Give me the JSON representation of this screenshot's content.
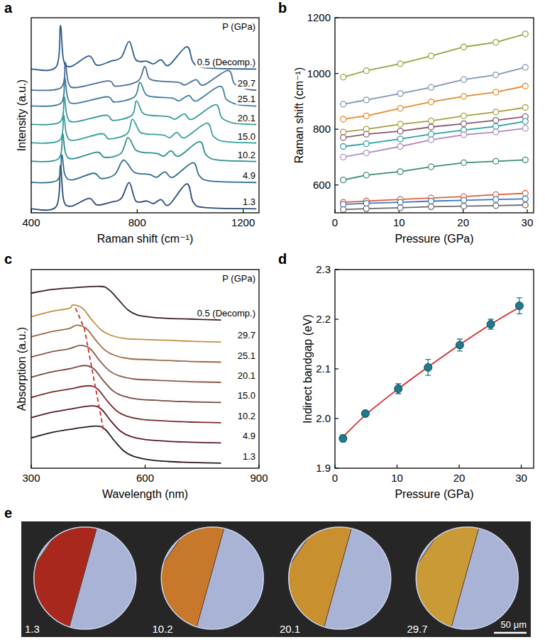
{
  "chart_data": [
    {
      "panel": "a",
      "type": "line",
      "xlabel": "Raman shift (cm⁻¹)",
      "ylabel": "Intensity (a.u.)",
      "legend_title": "P (GPa)",
      "xlim": [
        400,
        1260
      ],
      "xticks": [
        400,
        800,
        1200
      ],
      "ylim": [
        -0.1,
        7.3
      ],
      "tick_labels": "x",
      "series": [
        {
          "name": "1.3",
          "color": "#2b4a7a",
          "x": [
            400,
            495,
            510,
            522,
            550,
            618,
            648,
            700,
            740,
            770,
            795,
            836,
            861,
            890,
            920,
            987,
            1012,
            1057,
            1250
          ],
          "values": [
            0.05,
            0.15,
            1.7,
            0.4,
            0.15,
            0.45,
            0.2,
            0.3,
            0.45,
            1.05,
            0.35,
            0.35,
            0.25,
            0.4,
            0.2,
            1.0,
            0.3,
            0.1,
            0.05
          ]
        },
        {
          "name": "4.9",
          "color": "#2e6e8e",
          "x": [
            400,
            500,
            515,
            527,
            555,
            635,
            665,
            715,
            748,
            782,
            800,
            848,
            873,
            905,
            935,
            1010,
            1035,
            1080,
            1250
          ],
          "values": [
            1.05,
            1.15,
            2.1,
            1.35,
            1.15,
            1.4,
            1.2,
            1.35,
            1.9,
            1.5,
            1.4,
            1.35,
            1.25,
            1.45,
            1.25,
            1.8,
            1.3,
            1.1,
            1.05
          ]
        },
        {
          "name": "10.2",
          "color": "#2f8f8f",
          "x": [
            400,
            503,
            518,
            530,
            558,
            648,
            678,
            738,
            765,
            793,
            818,
            875,
            900,
            928,
            958,
            1035,
            1060,
            1105,
            1250
          ],
          "values": [
            1.85,
            1.95,
            2.9,
            2.15,
            1.95,
            2.2,
            2.0,
            2.15,
            2.75,
            2.3,
            2.2,
            2.15,
            2.05,
            2.25,
            2.05,
            2.6,
            2.1,
            1.9,
            1.85
          ]
        },
        {
          "name": "15.0",
          "color": "#35a39a",
          "x": [
            400,
            507,
            522,
            534,
            562,
            665,
            695,
            762,
            782,
            808,
            830,
            898,
            923,
            950,
            980,
            1063,
            1088,
            1133,
            1250
          ],
          "values": [
            2.55,
            2.65,
            3.6,
            2.85,
            2.65,
            2.9,
            2.7,
            2.9,
            3.45,
            3.0,
            2.9,
            2.85,
            2.75,
            2.95,
            2.75,
            3.3,
            2.8,
            2.6,
            2.55
          ]
        },
        {
          "name": "20.1",
          "color": "#3a9a9a",
          "x": [
            400,
            509,
            524,
            536,
            564,
            680,
            710,
            780,
            797,
            820,
            848,
            918,
            943,
            978,
            1008,
            1095,
            1120,
            1165,
            1250
          ],
          "values": [
            3.25,
            3.35,
            4.3,
            3.55,
            3.35,
            3.6,
            3.4,
            3.6,
            4.15,
            3.7,
            3.6,
            3.55,
            3.45,
            3.65,
            3.45,
            4.0,
            3.5,
            3.3,
            3.25
          ]
        },
        {
          "name": "25.1",
          "color": "#3f7e9c",
          "x": [
            400,
            511,
            526,
            538,
            566,
            685,
            715,
            790,
            810,
            832,
            862,
            933,
            958,
            995,
            1025,
            1112,
            1137,
            1182,
            1250
          ],
          "values": [
            3.95,
            4.05,
            5.0,
            4.25,
            4.05,
            4.3,
            4.1,
            4.3,
            4.85,
            4.4,
            4.3,
            4.25,
            4.15,
            4.35,
            4.15,
            4.7,
            4.2,
            4.0,
            3.95
          ]
        },
        {
          "name": "29.7",
          "color": "#4a6f95",
          "x": [
            400,
            513,
            528,
            540,
            568,
            690,
            720,
            803,
            828,
            845,
            878,
            955,
            980,
            1022,
            1052,
            1142,
            1167,
            1212,
            1250
          ],
          "values": [
            4.55,
            4.65,
            5.6,
            4.85,
            4.65,
            4.9,
            4.7,
            4.9,
            5.45,
            5.0,
            4.9,
            4.85,
            4.75,
            4.95,
            4.75,
            5.3,
            4.8,
            4.6,
            4.55
          ]
        },
        {
          "name": "0.5 (Decomp.)",
          "color": "#2d5a8a",
          "x": [
            400,
            495,
            510,
            522,
            550,
            618,
            648,
            700,
            740,
            770,
            795,
            836,
            861,
            890,
            920,
            987,
            1012,
            1057,
            1250
          ],
          "values": [
            5.35,
            5.45,
            7.0,
            5.7,
            5.45,
            5.85,
            5.5,
            5.65,
            5.8,
            6.4,
            5.7,
            5.65,
            5.55,
            5.7,
            5.5,
            6.2,
            5.6,
            5.4,
            5.35
          ]
        }
      ]
    },
    {
      "panel": "b",
      "type": "line",
      "xlabel": "Pressure (GPa)",
      "ylabel": "Raman shift (cm⁻¹)",
      "marker": "open_circle",
      "x": [
        1.3,
        4.9,
        10.2,
        15.0,
        20.1,
        25.1,
        29.7
      ],
      "xlim": [
        0,
        31
      ],
      "xticks": [
        0,
        10,
        20,
        30
      ],
      "ylim": [
        500,
        1200
      ],
      "yticks": [
        600,
        800,
        1000,
        1200
      ],
      "series": [
        {
          "color": "#8fa83c",
          "values": [
            987,
            1010,
            1035,
            1063,
            1095,
            1112,
            1142
          ]
        },
        {
          "color": "#7f95b5",
          "values": [
            890,
            905,
            928,
            950,
            978,
            995,
            1022
          ]
        },
        {
          "color": "#e8892c",
          "values": [
            836,
            848,
            875,
            898,
            918,
            933,
            955
          ]
        },
        {
          "color": "#a5a040",
          "values": [
            790,
            800,
            818,
            830,
            848,
            862,
            878
          ]
        },
        {
          "color": "#8a5a6a",
          "values": [
            770,
            782,
            793,
            808,
            820,
            832,
            845
          ]
        },
        {
          "color": "#2aa0a8",
          "values": [
            738,
            748,
            765,
            782,
            797,
            810,
            828
          ]
        },
        {
          "color": "#b08cc0",
          "values": [
            700,
            715,
            738,
            762,
            780,
            790,
            803
          ]
        },
        {
          "color": "#3a8f6a",
          "values": [
            618,
            635,
            648,
            665,
            680,
            685,
            690
          ]
        },
        {
          "color": "#e0603a",
          "values": [
            538,
            542,
            548,
            553,
            558,
            565,
            570
          ]
        },
        {
          "color": "#3a78c0",
          "values": [
            530,
            534,
            538,
            542,
            545,
            548,
            550
          ]
        },
        {
          "color": "#6a6a6a",
          "values": [
            512,
            515,
            518,
            522,
            524,
            526,
            528
          ]
        }
      ]
    },
    {
      "panel": "c",
      "type": "line",
      "xlabel": "Wavelength (nm)",
      "ylabel": "Absorption (a.u.)",
      "legend_title": "P (GPa)",
      "xlim": [
        300,
        900
      ],
      "xticks": [
        300,
        600,
        900
      ],
      "ylim": [
        -0.1,
        5.8
      ],
      "tick_labels": "x",
      "series": [
        {
          "name": "1.3",
          "color": "#2a1a1a",
          "x": [
            300,
            350,
            400,
            470,
            495,
            520,
            545,
            570,
            610,
            660,
            720,
            800
          ],
          "values": [
            0.8,
            0.95,
            1.05,
            1.15,
            1.05,
            0.7,
            0.4,
            0.25,
            0.15,
            0.1,
            0.07,
            0.05
          ]
        },
        {
          "name": "4.9",
          "color": "#5a1a2a",
          "x": [
            300,
            350,
            400,
            460,
            485,
            510,
            535,
            560,
            600,
            660,
            720,
            800
          ],
          "values": [
            1.4,
            1.55,
            1.65,
            1.75,
            1.65,
            1.3,
            1.0,
            0.85,
            0.75,
            0.7,
            0.67,
            0.65
          ]
        },
        {
          "name": "10.2",
          "color": "#7a2a30",
          "x": [
            300,
            350,
            400,
            450,
            475,
            500,
            525,
            550,
            590,
            660,
            720,
            800
          ],
          "values": [
            2.0,
            2.15,
            2.25,
            2.35,
            2.25,
            1.9,
            1.6,
            1.45,
            1.35,
            1.3,
            1.27,
            1.25
          ]
        },
        {
          "name": "15.0",
          "color": "#7a4a45",
          "x": [
            300,
            350,
            400,
            440,
            465,
            490,
            515,
            540,
            580,
            660,
            720,
            800
          ],
          "values": [
            2.6,
            2.75,
            2.85,
            2.95,
            2.85,
            2.5,
            2.2,
            2.05,
            1.95,
            1.9,
            1.87,
            1.85
          ]
        },
        {
          "name": "20.1",
          "color": "#8a5a4a",
          "x": [
            300,
            350,
            400,
            430,
            455,
            480,
            505,
            530,
            570,
            660,
            720,
            800
          ],
          "values": [
            3.2,
            3.35,
            3.45,
            3.55,
            3.45,
            3.1,
            2.8,
            2.65,
            2.55,
            2.5,
            2.47,
            2.45
          ]
        },
        {
          "name": "25.1",
          "color": "#9a6a45",
          "x": [
            300,
            350,
            400,
            420,
            445,
            470,
            495,
            520,
            560,
            660,
            720,
            800
          ],
          "values": [
            3.8,
            3.95,
            4.05,
            4.15,
            4.05,
            3.7,
            3.4,
            3.25,
            3.15,
            3.1,
            3.07,
            3.05
          ]
        },
        {
          "name": "29.7",
          "color": "#c09040",
          "x": [
            300,
            350,
            400,
            410,
            435,
            460,
            485,
            510,
            550,
            660,
            720,
            800
          ],
          "values": [
            4.4,
            4.55,
            4.65,
            4.75,
            4.65,
            4.3,
            4.0,
            3.85,
            3.75,
            3.7,
            3.67,
            3.65
          ]
        },
        {
          "name": "0.5 (Decomp.)",
          "color": "#3a2020",
          "x": [
            300,
            350,
            400,
            480,
            505,
            530,
            555,
            580,
            620,
            660,
            720,
            800
          ],
          "values": [
            5.1,
            5.2,
            5.25,
            5.3,
            5.2,
            4.9,
            4.6,
            4.45,
            4.38,
            4.35,
            4.33,
            4.3
          ]
        },
        {
          "color": "#d62728",
          "line_style": "dashed",
          "x": [
            490,
            480,
            470,
            460,
            450,
            440,
            415
          ],
          "values": [
            1.05,
            1.65,
            2.25,
            2.85,
            3.45,
            4.05,
            4.7
          ]
        }
      ]
    },
    {
      "panel": "d",
      "type": "scatter",
      "xlabel": "Pressure (GPa)",
      "ylabel": "Indirect bandgap (eV)",
      "xlim": [
        0,
        32
      ],
      "xticks": [
        0,
        10,
        20,
        30
      ],
      "ylim": [
        1.9,
        2.3
      ],
      "yticks": [
        1.9,
        {
          "value": 2,
          "label": "2.0"
        },
        2.1,
        2.2,
        2.3
      ],
      "series": [
        {
          "type": "line",
          "color": "#d62728",
          "x": [
            1.3,
            5,
            10,
            15,
            20,
            25,
            29.7
          ],
          "values": [
            1.963,
            2.008,
            2.058,
            2.104,
            2.148,
            2.189,
            2.224
          ]
        },
        {
          "type": "scatter",
          "color": "#1f7a8c",
          "marker": "circle",
          "x": [
            1.3,
            4.9,
            10.2,
            15.0,
            20.1,
            25.1,
            29.7
          ],
          "values": [
            1.96,
            2.01,
            2.06,
            2.103,
            2.148,
            2.19,
            2.227
          ],
          "errors": [
            0.007,
            0.006,
            0.01,
            0.016,
            0.012,
            0.01,
            0.016
          ]
        }
      ]
    }
  ],
  "photos": {
    "panel": "e",
    "labels": [
      "1.3",
      "10.2",
      "20.1",
      "29.7"
    ],
    "colors": [
      "#a8281e",
      "#c8782a",
      "#c8902e",
      "#c99a36"
    ],
    "scale_bar": "50 μm"
  }
}
